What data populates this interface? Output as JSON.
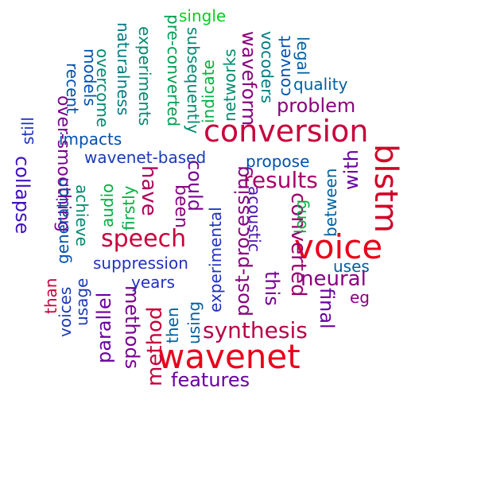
{
  "words": [
    {
      "text": "voice",
      "color": "#e8001a",
      "vertical": false
    },
    {
      "text": "wavenet",
      "color": "#e8001a",
      "vertical": false
    },
    {
      "text": "conversion",
      "color": "#c8003c",
      "vertical": false
    },
    {
      "text": "blstm",
      "color": "#d10028",
      "vertical": true
    },
    {
      "text": "speech",
      "color": "#c8003c",
      "vertical": false
    },
    {
      "text": "converted",
      "color": "#9a0070",
      "vertical": true
    },
    {
      "text": "method",
      "color": "#c8003c",
      "vertical": true
    },
    {
      "text": "results",
      "color": "#a8006a",
      "vertical": false
    },
    {
      "text": "synthesis",
      "color": "#b8004a",
      "vertical": false
    },
    {
      "text": "neural",
      "color": "#8a0080",
      "vertical": false
    },
    {
      "text": "have",
      "color": "#b0005a",
      "vertical": true
    },
    {
      "text": "post-processing",
      "color": "#8a0080",
      "vertical": true
    },
    {
      "text": "parallel",
      "color": "#6a00a0",
      "vertical": true
    },
    {
      "text": "methods",
      "color": "#7a0090",
      "vertical": true
    },
    {
      "text": "waveform",
      "color": "#8a0080",
      "vertical": true
    },
    {
      "text": "problem",
      "color": "#8a0080",
      "vertical": false
    },
    {
      "text": "could",
      "color": "#7a0090",
      "vertical": true
    },
    {
      "text": "over-smoothing",
      "color": "#7a0090",
      "vertical": true
    },
    {
      "text": "this",
      "color": "#7a0090",
      "vertical": true
    },
    {
      "text": "final",
      "color": "#6a00a0",
      "vertical": true
    },
    {
      "text": "with",
      "color": "#6a00a0",
      "vertical": true
    },
    {
      "text": "acoustic",
      "color": "#4a10b0",
      "vertical": true
    },
    {
      "text": "collapse",
      "color": "#4010c0",
      "vertical": true
    },
    {
      "text": "features",
      "color": "#6a00a0",
      "vertical": false
    },
    {
      "text": "been",
      "color": "#8a0080",
      "vertical": true
    },
    {
      "text": "suppression",
      "color": "#2030c0",
      "vertical": false
    },
    {
      "text": "wavenet-based",
      "color": "#1a3ab8",
      "vertical": false
    },
    {
      "text": "propose",
      "color": "#0050b0",
      "vertical": false
    },
    {
      "text": "impacts",
      "color": "#0050b0",
      "vertical": false
    },
    {
      "text": "years",
      "color": "#2030c0",
      "vertical": false
    },
    {
      "text": "experimental",
      "color": "#2030c0",
      "vertical": true
    },
    {
      "text": "quality",
      "color": "#0060a0",
      "vertical": false
    },
    {
      "text": "uses",
      "color": "#0060a0",
      "vertical": false
    },
    {
      "text": "between",
      "color": "#0060a0",
      "vertical": true
    },
    {
      "text": "eg",
      "color": "#8a0080",
      "vertical": false
    },
    {
      "text": "generation",
      "color": "#0050b0",
      "vertical": true
    },
    {
      "text": "usage",
      "color": "#1a3ab8",
      "vertical": true
    },
    {
      "text": "voices",
      "color": "#1a3ab8",
      "vertical": true
    },
    {
      "text": "than",
      "color": "#c8003c",
      "vertical": true
    },
    {
      "text": "then",
      "color": "#0060a0",
      "vertical": true
    },
    {
      "text": "using",
      "color": "#0060a0",
      "vertical": true
    },
    {
      "text": "still",
      "color": "#2030c0",
      "vertical": true
    },
    {
      "text": "recent",
      "color": "#0050b0",
      "vertical": true
    },
    {
      "text": "models",
      "color": "#0050b0",
      "vertical": true
    },
    {
      "text": "overcome",
      "color": "#008a70",
      "vertical": true
    },
    {
      "text": "naturalness",
      "color": "#007a80",
      "vertical": true
    },
    {
      "text": "experiments",
      "color": "#008a70",
      "vertical": true
    },
    {
      "text": "pre-converted",
      "color": "#00a050",
      "vertical": true
    },
    {
      "text": "subsequently",
      "color": "#008a70",
      "vertical": true
    },
    {
      "text": "indicate",
      "color": "#00b040",
      "vertical": true
    },
    {
      "text": "networks",
      "color": "#008a70",
      "vertical": true
    },
    {
      "text": "vocoders",
      "color": "#007a80",
      "vertical": true
    },
    {
      "text": "convert",
      "color": "#0050b0",
      "vertical": true
    },
    {
      "text": "legal",
      "color": "#0060a0",
      "vertical": true
    },
    {
      "text": "single",
      "color": "#00d020",
      "vertical": false
    },
    {
      "text": "achieve",
      "color": "#008a70",
      "vertical": true
    },
    {
      "text": "audio",
      "color": "#00b040",
      "vertical": true
    },
    {
      "text": "firstly",
      "color": "#00b040",
      "vertical": true
    },
    {
      "text": "long",
      "color": "#00b040",
      "vertical": true
    }
  ]
}
